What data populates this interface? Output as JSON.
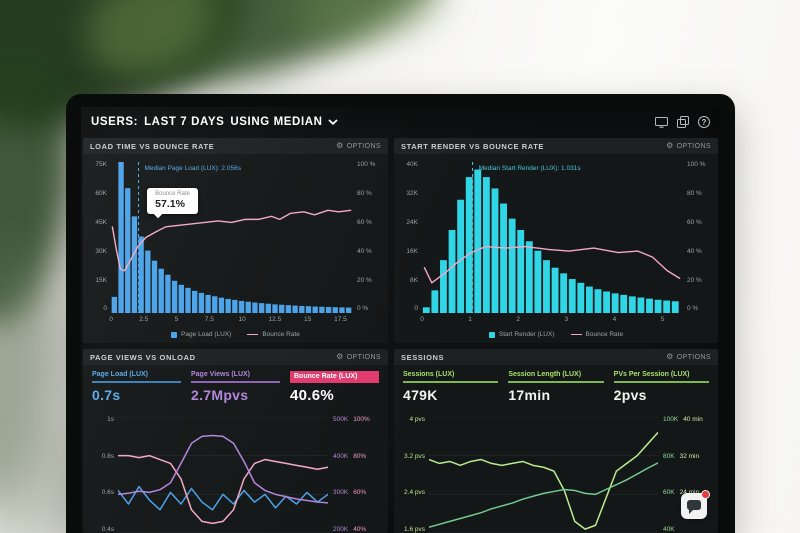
{
  "colors": {
    "blue": "#4aa2e8",
    "cyan": "#30d6e6",
    "pink": "#f3a8c4",
    "purple": "#b285dd",
    "red": "#e13a6f",
    "green": "#b8ec8f",
    "green_dark": "#74c98e",
    "median_blue": "#58a9e9",
    "median_cyan": "#47c9e2",
    "panel_bg": "#141717",
    "panel_head_bg": "#1d2121",
    "text_gray": "#99a3a1"
  },
  "header": {
    "users": "USERS:",
    "range": "LAST 7 DAYS",
    "metric": "USING MEDIAN",
    "help_glyph": "?"
  },
  "icons": {
    "gear": "⚙"
  },
  "panels": {
    "load_time": {
      "title": "LOAD TIME VS BOUNCE RATE",
      "options": "OPTIONS",
      "annotation": "Median Page Load (LUX): 2.056s",
      "tooltip_label": "Bounce Rate",
      "tooltip_value": "57.1%",
      "y_left": [
        "75K",
        "60K",
        "45K",
        "30K",
        "15K",
        "0"
      ],
      "y_right": [
        "100 %",
        "80 %",
        "60 %",
        "40 %",
        "20 %",
        "0 %"
      ],
      "x_ticks": {
        "values": [
          0,
          2.5,
          5,
          7.5,
          10,
          12.5,
          15,
          17.5
        ],
        "labels": [
          "0",
          "2.5",
          "5",
          "7.5",
          "10",
          "12.5",
          "15",
          "17.5"
        ],
        "xmax": 18
      },
      "legend": [
        {
          "label": "Page Load (LUX)"
        },
        {
          "label": "Bounce Rate"
        }
      ]
    },
    "start_render": {
      "title": "START RENDER VS BOUNCE RATE",
      "options": "OPTIONS",
      "annotation": "Median Start Render (LUX): 1.031s",
      "y_left": [
        "40K",
        "32K",
        "24K",
        "16K",
        "8K",
        "0"
      ],
      "y_right": [
        "100 %",
        "80 %",
        "60 %",
        "40 %",
        "20 %",
        "0 %"
      ],
      "x_ticks": {
        "values": [
          0,
          1,
          2,
          3,
          4,
          5
        ],
        "labels": [
          "0",
          "1",
          "2",
          "3",
          "4",
          "5"
        ],
        "xmax": 5.3
      },
      "legend": [
        {
          "label": "Start Render (LUX)"
        },
        {
          "label": "Bounce Rate"
        }
      ]
    },
    "page_views": {
      "title": "PAGE VIEWS VS ONLOAD",
      "options": "OPTIONS",
      "metrics": [
        {
          "label": "Page Load (LUX)",
          "value": "0.7s"
        },
        {
          "label": "Page Views (LUX)",
          "value": "2.7Mpvs"
        },
        {
          "label": "Bounce Rate (LUX)",
          "value": "40.6%"
        }
      ],
      "y_left": [
        "1s",
        "0.8s",
        "0.6s",
        "0.4s"
      ],
      "y_right": [
        [
          "500K",
          "100%"
        ],
        [
          "400K",
          "80%"
        ],
        [
          "300K",
          "60%"
        ],
        [
          "200K",
          "40%"
        ]
      ]
    },
    "sessions": {
      "title": "SESSIONS",
      "options": "OPTIONS",
      "metrics": [
        {
          "label": "Sessions (LUX)",
          "value": "479K"
        },
        {
          "label": "Session Length (LUX)",
          "value": "17min"
        },
        {
          "label": "PVs Per Session (LUX)",
          "value": "2pvs"
        }
      ],
      "y_left": [
        "4 pvs",
        "3.2 pvs",
        "2.4 pvs",
        "1.6 pvs"
      ],
      "y_right": [
        [
          "100K",
          "40 min"
        ],
        [
          "80K",
          "32 min"
        ],
        [
          "60K",
          "24 min"
        ],
        [
          "40K",
          ""
        ]
      ]
    }
  },
  "chart_data": [
    {
      "id": "load_time_vs_bounce",
      "type": "bar",
      "x_range": [
        0,
        18
      ],
      "x_unit": "s",
      "bar_width": 0.5,
      "y_max_k": 75,
      "bar_color": "blue",
      "line_color": "pink",
      "median_color": "median_blue",
      "median_x": 2.056,
      "bars_k": [
        8,
        75,
        62,
        48,
        38,
        31,
        26,
        22,
        19,
        16,
        14,
        12.5,
        11,
        10,
        9,
        8.3,
        7.6,
        7,
        6.5,
        6,
        5.6,
        5.2,
        4.9,
        4.6,
        4.3,
        4.1,
        3.9,
        3.7,
        3.5,
        3.4,
        3.2,
        3.1,
        3,
        2.9,
        2.8,
        2.7
      ],
      "bounce_line": [
        [
          0.1,
          57
        ],
        [
          0.4,
          42
        ],
        [
          0.7,
          29
        ],
        [
          1.0,
          28
        ],
        [
          1.4,
          34
        ],
        [
          2.0,
          44
        ],
        [
          2.6,
          50
        ],
        [
          3.4,
          54
        ],
        [
          4.1,
          57.1
        ],
        [
          5,
          58
        ],
        [
          6,
          59
        ],
        [
          7,
          60
        ],
        [
          8,
          61
        ],
        [
          9,
          60
        ],
        [
          10,
          62
        ],
        [
          11,
          62
        ],
        [
          12,
          64
        ],
        [
          12.6,
          62
        ],
        [
          13.4,
          66
        ],
        [
          14.4,
          67
        ],
        [
          15.2,
          65
        ],
        [
          16.2,
          68
        ],
        [
          17,
          67
        ],
        [
          17.9,
          68
        ]
      ]
    },
    {
      "id": "start_render_vs_bounce",
      "type": "bar",
      "x_range": [
        0,
        5.3
      ],
      "x_unit": "s",
      "bar_width": 0.175,
      "y_max_k": 40,
      "bar_color": "cyan",
      "line_color": "pink",
      "median_color": "median_cyan",
      "median_x": 1.031,
      "bars_k": [
        1.5,
        6,
        14,
        22,
        30,
        36,
        38,
        36,
        33,
        29,
        25,
        22,
        19,
        16.5,
        14,
        12,
        10.5,
        9,
        8,
        7,
        6.3,
        5.7,
        5.2,
        4.8,
        4.4,
        4.1,
        3.8,
        3.5,
        3.3,
        3.1
      ],
      "bounce_line": [
        [
          0.05,
          30
        ],
        [
          0.2,
          20
        ],
        [
          0.45,
          26
        ],
        [
          0.7,
          33
        ],
        [
          1.0,
          40
        ],
        [
          1.3,
          44
        ],
        [
          1.7,
          43
        ],
        [
          2.1,
          44
        ],
        [
          2.6,
          42
        ],
        [
          3.0,
          41
        ],
        [
          3.5,
          43
        ],
        [
          4.0,
          40
        ],
        [
          4.4,
          41
        ],
        [
          4.7,
          37
        ],
        [
          5.0,
          28
        ],
        [
          5.25,
          23
        ]
      ]
    },
    {
      "id": "page_views_vs_onload",
      "type": "line",
      "series": [
        {
          "name": "Page Load (LUX)",
          "color": "blue",
          "unit": "s",
          "axis": [
            0.4,
            1.0
          ],
          "values": [
            0.62,
            0.55,
            0.64,
            0.57,
            0.52,
            0.61,
            0.55,
            0.63,
            0.56,
            0.52,
            0.6,
            0.55,
            0.62,
            0.56,
            0.6,
            0.53,
            0.59,
            0.55,
            0.61,
            0.56,
            0.6
          ]
        },
        {
          "name": "Bounce Rate (LUX)",
          "color": "pink",
          "unit": "%",
          "axis": [
            40,
            100
          ],
          "values": [
            80,
            80,
            79,
            80,
            78,
            76,
            68,
            52,
            46,
            45,
            46,
            52,
            68,
            76,
            78,
            77,
            76,
            75,
            74,
            73,
            74
          ]
        },
        {
          "name": "Page Views (LUX)",
          "color": "purple",
          "unit": "K",
          "axis": [
            200,
            500
          ],
          "values": [
            300,
            303,
            308,
            305,
            312,
            330,
            380,
            432,
            450,
            452,
            450,
            432,
            385,
            330,
            310,
            300,
            294,
            288,
            284,
            280,
            278
          ]
        }
      ]
    },
    {
      "id": "sessions",
      "type": "line",
      "series": [
        {
          "name": "Sessions (LUX)",
          "color": "green",
          "unit": "K",
          "axis": [
            40,
            100
          ],
          "values": [
            78,
            76,
            77,
            75,
            77,
            78,
            76,
            75,
            76,
            77,
            75,
            74,
            72,
            62,
            46,
            42,
            44,
            58,
            72,
            76,
            80,
            86,
            92
          ]
        },
        {
          "name": "PVs Per Session (LUX)",
          "color": "green_dark",
          "unit": "pvs",
          "axis": [
            1.6,
            4.0
          ],
          "values": [
            1.72,
            1.78,
            1.84,
            1.9,
            1.96,
            2.02,
            2.1,
            2.16,
            2.22,
            2.3,
            2.36,
            2.42,
            2.46,
            2.5,
            2.48,
            2.42,
            2.4,
            2.5,
            2.6,
            2.7,
            2.82,
            2.94,
            3.05
          ]
        }
      ]
    }
  ]
}
